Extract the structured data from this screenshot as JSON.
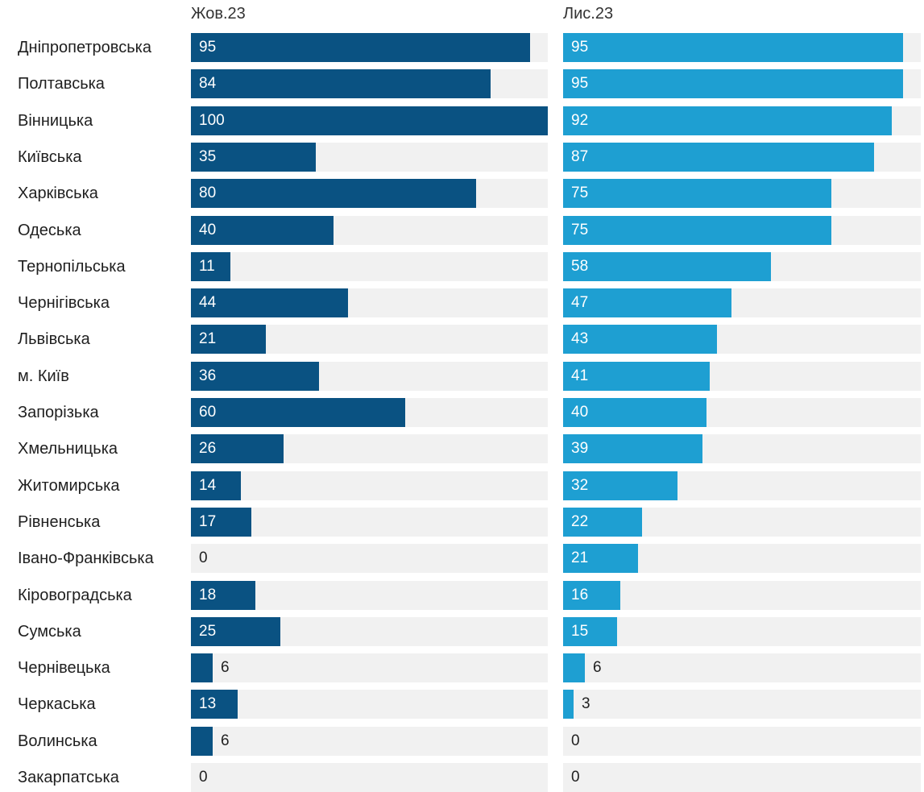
{
  "chart_data": {
    "type": "bar",
    "orientation": "horizontal",
    "layout": "small-multiples",
    "categories": [
      "Дніпропетровська",
      "Полтавська",
      "Вінницька",
      "Київська",
      "Харківська",
      "Одеська",
      "Тернопільська",
      "Чернігівська",
      "Львівська",
      "м. Київ",
      "Запорізька",
      "Хмельницька",
      "Житомирська",
      "Рівненська",
      "Івано-Франківська",
      "Кіровоградська",
      "Сумська",
      "Чернівецька",
      "Черкаська",
      "Волинська",
      "Закарпатська"
    ],
    "series": [
      {
        "name": "Жов.23",
        "color": "#0a5282",
        "values": [
          95,
          84,
          100,
          35,
          80,
          40,
          11,
          44,
          21,
          36,
          60,
          26,
          14,
          17,
          0,
          18,
          25,
          6,
          13,
          6,
          0
        ]
      },
      {
        "name": "Лис.23",
        "color": "#1e9fd2",
        "values": [
          95,
          95,
          92,
          87,
          75,
          75,
          58,
          47,
          43,
          41,
          40,
          39,
          32,
          22,
          21,
          16,
          15,
          6,
          3,
          0,
          0
        ]
      }
    ],
    "xlim": [
      0,
      100
    ],
    "grid": false,
    "data_labels": true,
    "track_color": "#f1f1f1"
  }
}
